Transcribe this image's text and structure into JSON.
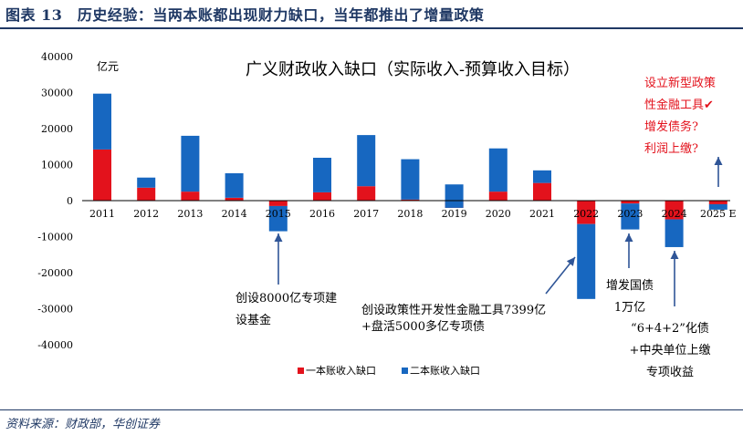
{
  "figure": {
    "title": "图表 13　历史经验：当两本账都出现财力缺口，当年都推出了增量政策",
    "source": "资料来源：财政部，华创证券"
  },
  "colors": {
    "series1": "#e3121c",
    "series2": "#1767c0",
    "title": "#1f3864",
    "annotation_red": "#e3121c"
  },
  "chart_data": {
    "type": "bar",
    "stacked": true,
    "title": "广义财政收入缺口（实际收入-预算收入目标）",
    "unit": "亿元",
    "categories": [
      "2011",
      "2012",
      "2013",
      "2014",
      "2015",
      "2016",
      "2017",
      "2018",
      "2019",
      "2020",
      "2021",
      "2022",
      "2023",
      "2024",
      "2025 E"
    ],
    "series": [
      {
        "name": "一本账收入缺口",
        "values": [
          14200,
          3600,
          2500,
          800,
          -1500,
          2300,
          4000,
          300,
          -2000,
          2500,
          4900,
          -6500,
          -800,
          -5200,
          -1000
        ]
      },
      {
        "name": "二本账收入缺口",
        "values": [
          15500,
          2800,
          15500,
          6800,
          -7000,
          9600,
          14200,
          11200,
          6500,
          12000,
          3500,
          -20800,
          -7200,
          -7700,
          -1500
        ]
      }
    ],
    "ylim": [
      -40000,
      40000
    ],
    "yticks": [
      -40000,
      -30000,
      -20000,
      -10000,
      0,
      10000,
      20000,
      30000,
      40000
    ],
    "legend_position": "bottom",
    "annotations": [
      {
        "id": "2015",
        "lines": [
          "创设8000亿专项建",
          "设基金"
        ]
      },
      {
        "id": "2022",
        "lines": [
          "创设政策性开发性金融工具7399亿",
          "+盘活5000多亿专项债"
        ]
      },
      {
        "id": "2023",
        "lines": [
          "增发国债",
          "1万亿"
        ]
      },
      {
        "id": "2024",
        "lines": [
          "“6+4+2”化债",
          "+中央单位上缴",
          "专项收益"
        ]
      },
      {
        "id": "2025",
        "lines": [
          "设立新型政策",
          "性金融工具✔",
          "增发债务?",
          "利润上缴?"
        ]
      }
    ]
  }
}
